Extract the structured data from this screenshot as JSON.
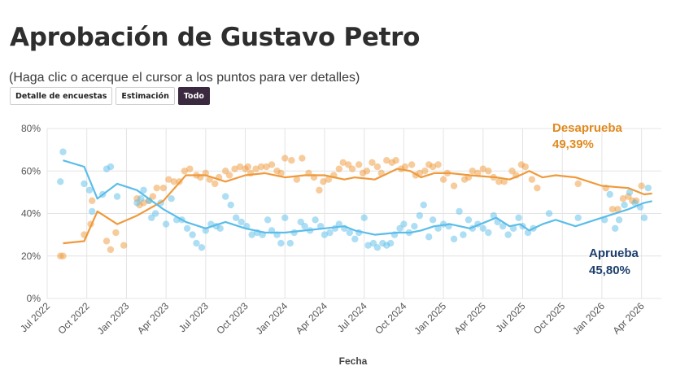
{
  "title": "Aprobación de Gustavo Petro",
  "subtitle": "(Haga clic o acerque el cursor a los puntos para ver detalles)",
  "buttons": [
    {
      "label": "Detalle de encuestas",
      "active": false
    },
    {
      "label": "Estimación",
      "active": false
    },
    {
      "label": "Todo",
      "active": true
    }
  ],
  "colors": {
    "desaprueba": "#ef9a3c",
    "desaprueba_text": "#e08a1e",
    "aprueba": "#5bbde9",
    "aprueba_text": "#1d3f6e",
    "grid": "#e4e4e4",
    "axis_text": "#555555"
  },
  "chart_data": {
    "type": "scatter+line",
    "xlabel": "Fecha",
    "ylabel": "",
    "ylim": [
      0,
      80
    ],
    "y_ticks": [
      "0%",
      "20%",
      "40%",
      "60%",
      "80%"
    ],
    "y_tick_values": [
      0,
      20,
      40,
      60,
      80
    ],
    "x_ticks": [
      "Jul 2022",
      "Oct 2022",
      "Jan 2023",
      "Apr 2023",
      "Jul 2023",
      "Oct 2023",
      "Jan 2024",
      "Apr 2024",
      "Jul 2024",
      "Oct 2024",
      "Jan 2025",
      "Apr 2025",
      "Jul 2025",
      "Oct 2025",
      "Jan 2026",
      "Apr 2026"
    ],
    "x_tick_months": [
      0,
      3,
      6,
      9,
      12,
      15,
      18,
      21,
      24,
      27,
      30,
      33,
      36,
      39,
      42,
      45
    ],
    "x_unit": "months since Jul 2022",
    "grid": true,
    "series": [
      {
        "name": "Desaprueba",
        "final_label": "49,39%",
        "trend": [
          [
            1.2,
            26
          ],
          [
            2.8,
            27
          ],
          [
            3.8,
            41
          ],
          [
            5.3,
            35
          ],
          [
            6.8,
            39
          ],
          [
            8.8,
            46
          ],
          [
            10.5,
            58
          ],
          [
            12,
            58
          ],
          [
            13.5,
            55
          ],
          [
            15,
            58
          ],
          [
            16.5,
            59
          ],
          [
            18,
            57
          ],
          [
            19.5,
            58
          ],
          [
            21,
            58
          ],
          [
            22.5,
            56
          ],
          [
            23.3,
            57
          ],
          [
            24.8,
            56
          ],
          [
            26.5,
            61
          ],
          [
            27.5,
            60
          ],
          [
            28.3,
            57
          ],
          [
            29.3,
            59
          ],
          [
            30.5,
            59
          ],
          [
            32,
            58
          ],
          [
            34,
            57
          ],
          [
            35,
            56
          ],
          [
            35.8,
            58
          ],
          [
            36.5,
            60
          ],
          [
            37.5,
            57
          ],
          [
            38.5,
            58
          ],
          [
            40,
            57
          ],
          [
            42,
            53
          ],
          [
            44,
            52
          ],
          [
            45.2,
            49
          ],
          [
            45.8,
            49.4
          ]
        ],
        "points": [
          [
            1,
            20
          ],
          [
            1.2,
            20
          ],
          [
            2.8,
            30
          ],
          [
            3.3,
            35
          ],
          [
            3.4,
            46
          ],
          [
            4.5,
            27
          ],
          [
            4.8,
            23
          ],
          [
            5.2,
            31
          ],
          [
            5.8,
            25
          ],
          [
            6.8,
            47
          ],
          [
            7,
            44
          ],
          [
            7.3,
            45
          ],
          [
            7.7,
            46
          ],
          [
            8,
            48
          ],
          [
            8.3,
            52
          ],
          [
            8.8,
            52
          ],
          [
            9.2,
            56
          ],
          [
            9.6,
            55
          ],
          [
            10,
            55
          ],
          [
            10.4,
            60
          ],
          [
            10.8,
            61
          ],
          [
            11.3,
            58
          ],
          [
            11.6,
            57
          ],
          [
            12,
            59
          ],
          [
            12.3,
            56
          ],
          [
            12.7,
            54
          ],
          [
            13,
            57
          ],
          [
            13.5,
            60
          ],
          [
            13.8,
            58
          ],
          [
            14.2,
            61
          ],
          [
            14.6,
            62
          ],
          [
            15,
            61
          ],
          [
            15.2,
            62
          ],
          [
            15.4,
            59
          ],
          [
            15.8,
            61
          ],
          [
            16.2,
            62
          ],
          [
            16.6,
            62
          ],
          [
            17,
            63
          ],
          [
            17.4,
            60
          ],
          [
            17.7,
            59
          ],
          [
            18,
            66
          ],
          [
            18.5,
            65
          ],
          [
            18.9,
            56
          ],
          [
            19.3,
            66
          ],
          [
            19.8,
            59
          ],
          [
            20.2,
            57
          ],
          [
            20.6,
            51
          ],
          [
            20.9,
            55
          ],
          [
            21.3,
            56
          ],
          [
            21.7,
            58
          ],
          [
            22.1,
            61
          ],
          [
            22.4,
            64
          ],
          [
            22.8,
            63
          ],
          [
            23.1,
            61
          ],
          [
            23.6,
            63
          ],
          [
            23.9,
            59
          ],
          [
            24.2,
            60
          ],
          [
            24.6,
            64
          ],
          [
            25,
            62
          ],
          [
            25.3,
            59
          ],
          [
            25.7,
            65
          ],
          [
            26.1,
            64
          ],
          [
            26.4,
            65
          ],
          [
            26.8,
            61
          ],
          [
            27.1,
            62
          ],
          [
            27.6,
            63
          ],
          [
            27.9,
            58
          ],
          [
            28.2,
            59
          ],
          [
            28.6,
            60
          ],
          [
            28.9,
            63
          ],
          [
            29.2,
            62
          ],
          [
            29.6,
            63
          ],
          [
            30,
            56
          ],
          [
            30.3,
            59
          ],
          [
            30.8,
            53
          ],
          [
            31.6,
            56
          ],
          [
            31.9,
            57
          ],
          [
            32.2,
            60
          ],
          [
            32.6,
            59
          ],
          [
            33,
            61
          ],
          [
            33.4,
            60
          ],
          [
            33.8,
            57
          ],
          [
            34.2,
            55
          ],
          [
            34.6,
            55
          ],
          [
            35.2,
            60
          ],
          [
            35.5,
            58
          ],
          [
            35.9,
            63
          ],
          [
            36.2,
            62
          ],
          [
            36.7,
            56
          ],
          [
            37.1,
            52
          ],
          [
            40.2,
            54
          ],
          [
            42.3,
            52
          ],
          [
            42.8,
            42
          ],
          [
            43.2,
            42
          ],
          [
            43.6,
            47
          ],
          [
            44,
            48
          ],
          [
            44.3,
            46
          ],
          [
            44.6,
            46
          ],
          [
            45,
            53
          ]
        ]
      },
      {
        "name": "Aprueba",
        "final_label": "45,80%",
        "trend": [
          [
            1.2,
            65
          ],
          [
            2.8,
            62
          ],
          [
            3.8,
            47
          ],
          [
            5.3,
            54
          ],
          [
            6.8,
            51
          ],
          [
            8.8,
            42
          ],
          [
            10.5,
            36
          ],
          [
            12,
            33
          ],
          [
            13.5,
            36
          ],
          [
            15,
            33
          ],
          [
            16.5,
            31
          ],
          [
            18,
            31
          ],
          [
            19.5,
            32
          ],
          [
            21,
            33
          ],
          [
            22.5,
            34
          ],
          [
            23.3,
            32
          ],
          [
            24.8,
            30
          ],
          [
            26.5,
            31
          ],
          [
            27.5,
            31
          ],
          [
            28.3,
            32
          ],
          [
            29.3,
            34
          ],
          [
            30.5,
            35
          ],
          [
            32,
            33
          ],
          [
            34,
            38
          ],
          [
            35,
            34
          ],
          [
            35.8,
            35
          ],
          [
            36.5,
            32
          ],
          [
            37.5,
            35
          ],
          [
            38.5,
            37
          ],
          [
            40,
            34
          ],
          [
            42,
            38
          ],
          [
            44,
            42
          ],
          [
            45.2,
            45
          ],
          [
            45.8,
            45.8
          ]
        ],
        "points": [
          [
            1,
            55
          ],
          [
            1.2,
            69
          ],
          [
            2.8,
            54
          ],
          [
            3.2,
            51
          ],
          [
            3.4,
            41
          ],
          [
            4.2,
            49
          ],
          [
            4.5,
            61
          ],
          [
            4.8,
            62
          ],
          [
            5.3,
            48
          ],
          [
            6.8,
            45
          ],
          [
            7.1,
            47
          ],
          [
            7.3,
            51
          ],
          [
            7.7,
            46
          ],
          [
            7.9,
            38
          ],
          [
            8.2,
            40
          ],
          [
            8.6,
            45
          ],
          [
            9,
            35
          ],
          [
            9.4,
            47
          ],
          [
            9.8,
            37
          ],
          [
            10.2,
            37
          ],
          [
            10.6,
            33
          ],
          [
            11,
            30
          ],
          [
            11.3,
            26
          ],
          [
            11.7,
            24
          ],
          [
            12,
            32
          ],
          [
            12.4,
            35
          ],
          [
            12.8,
            34
          ],
          [
            13.1,
            33
          ],
          [
            13.5,
            48
          ],
          [
            13.9,
            44
          ],
          [
            14.3,
            38
          ],
          [
            14.7,
            36
          ],
          [
            15.1,
            34
          ],
          [
            15.5,
            30
          ],
          [
            15.9,
            31
          ],
          [
            16.3,
            30
          ],
          [
            16.7,
            37
          ],
          [
            17,
            32
          ],
          [
            17.4,
            30
          ],
          [
            17.7,
            26
          ],
          [
            18,
            38
          ],
          [
            18.4,
            26
          ],
          [
            18.7,
            31
          ],
          [
            19.2,
            36
          ],
          [
            19.5,
            34
          ],
          [
            19.9,
            32
          ],
          [
            20.3,
            37
          ],
          [
            20.7,
            34
          ],
          [
            21,
            30
          ],
          [
            21.4,
            31
          ],
          [
            21.8,
            33
          ],
          [
            22.1,
            35
          ],
          [
            22.5,
            33
          ],
          [
            22.9,
            31
          ],
          [
            23.3,
            28
          ],
          [
            23.6,
            31
          ],
          [
            24,
            38
          ],
          [
            24.3,
            25
          ],
          [
            24.7,
            26
          ],
          [
            25,
            24
          ],
          [
            25.4,
            26
          ],
          [
            25.7,
            25
          ],
          [
            26,
            26
          ],
          [
            26.3,
            30
          ],
          [
            26.7,
            33
          ],
          [
            27,
            35
          ],
          [
            27.4,
            31
          ],
          [
            27.8,
            34
          ],
          [
            28.2,
            39
          ],
          [
            28.5,
            44
          ],
          [
            28.9,
            29
          ],
          [
            29.2,
            37
          ],
          [
            29.6,
            33
          ],
          [
            30,
            35
          ],
          [
            30.4,
            34
          ],
          [
            30.8,
            28
          ],
          [
            31.2,
            41
          ],
          [
            31.5,
            30
          ],
          [
            31.9,
            37
          ],
          [
            32.2,
            33
          ],
          [
            32.6,
            35
          ],
          [
            33,
            33
          ],
          [
            33.4,
            31
          ],
          [
            33.8,
            39
          ],
          [
            34.1,
            36
          ],
          [
            34.5,
            34
          ],
          [
            34.9,
            30
          ],
          [
            35.3,
            33
          ],
          [
            35.7,
            38
          ],
          [
            36,
            34
          ],
          [
            36.4,
            31
          ],
          [
            36.8,
            33
          ],
          [
            38,
            40
          ],
          [
            40.2,
            38
          ],
          [
            42.2,
            37
          ],
          [
            42.6,
            49
          ],
          [
            43,
            33
          ],
          [
            43.3,
            37
          ],
          [
            43.7,
            44
          ],
          [
            44.1,
            50
          ],
          [
            44.5,
            45
          ],
          [
            44.9,
            43
          ],
          [
            45.2,
            38
          ],
          [
            45.5,
            52
          ]
        ]
      }
    ]
  }
}
